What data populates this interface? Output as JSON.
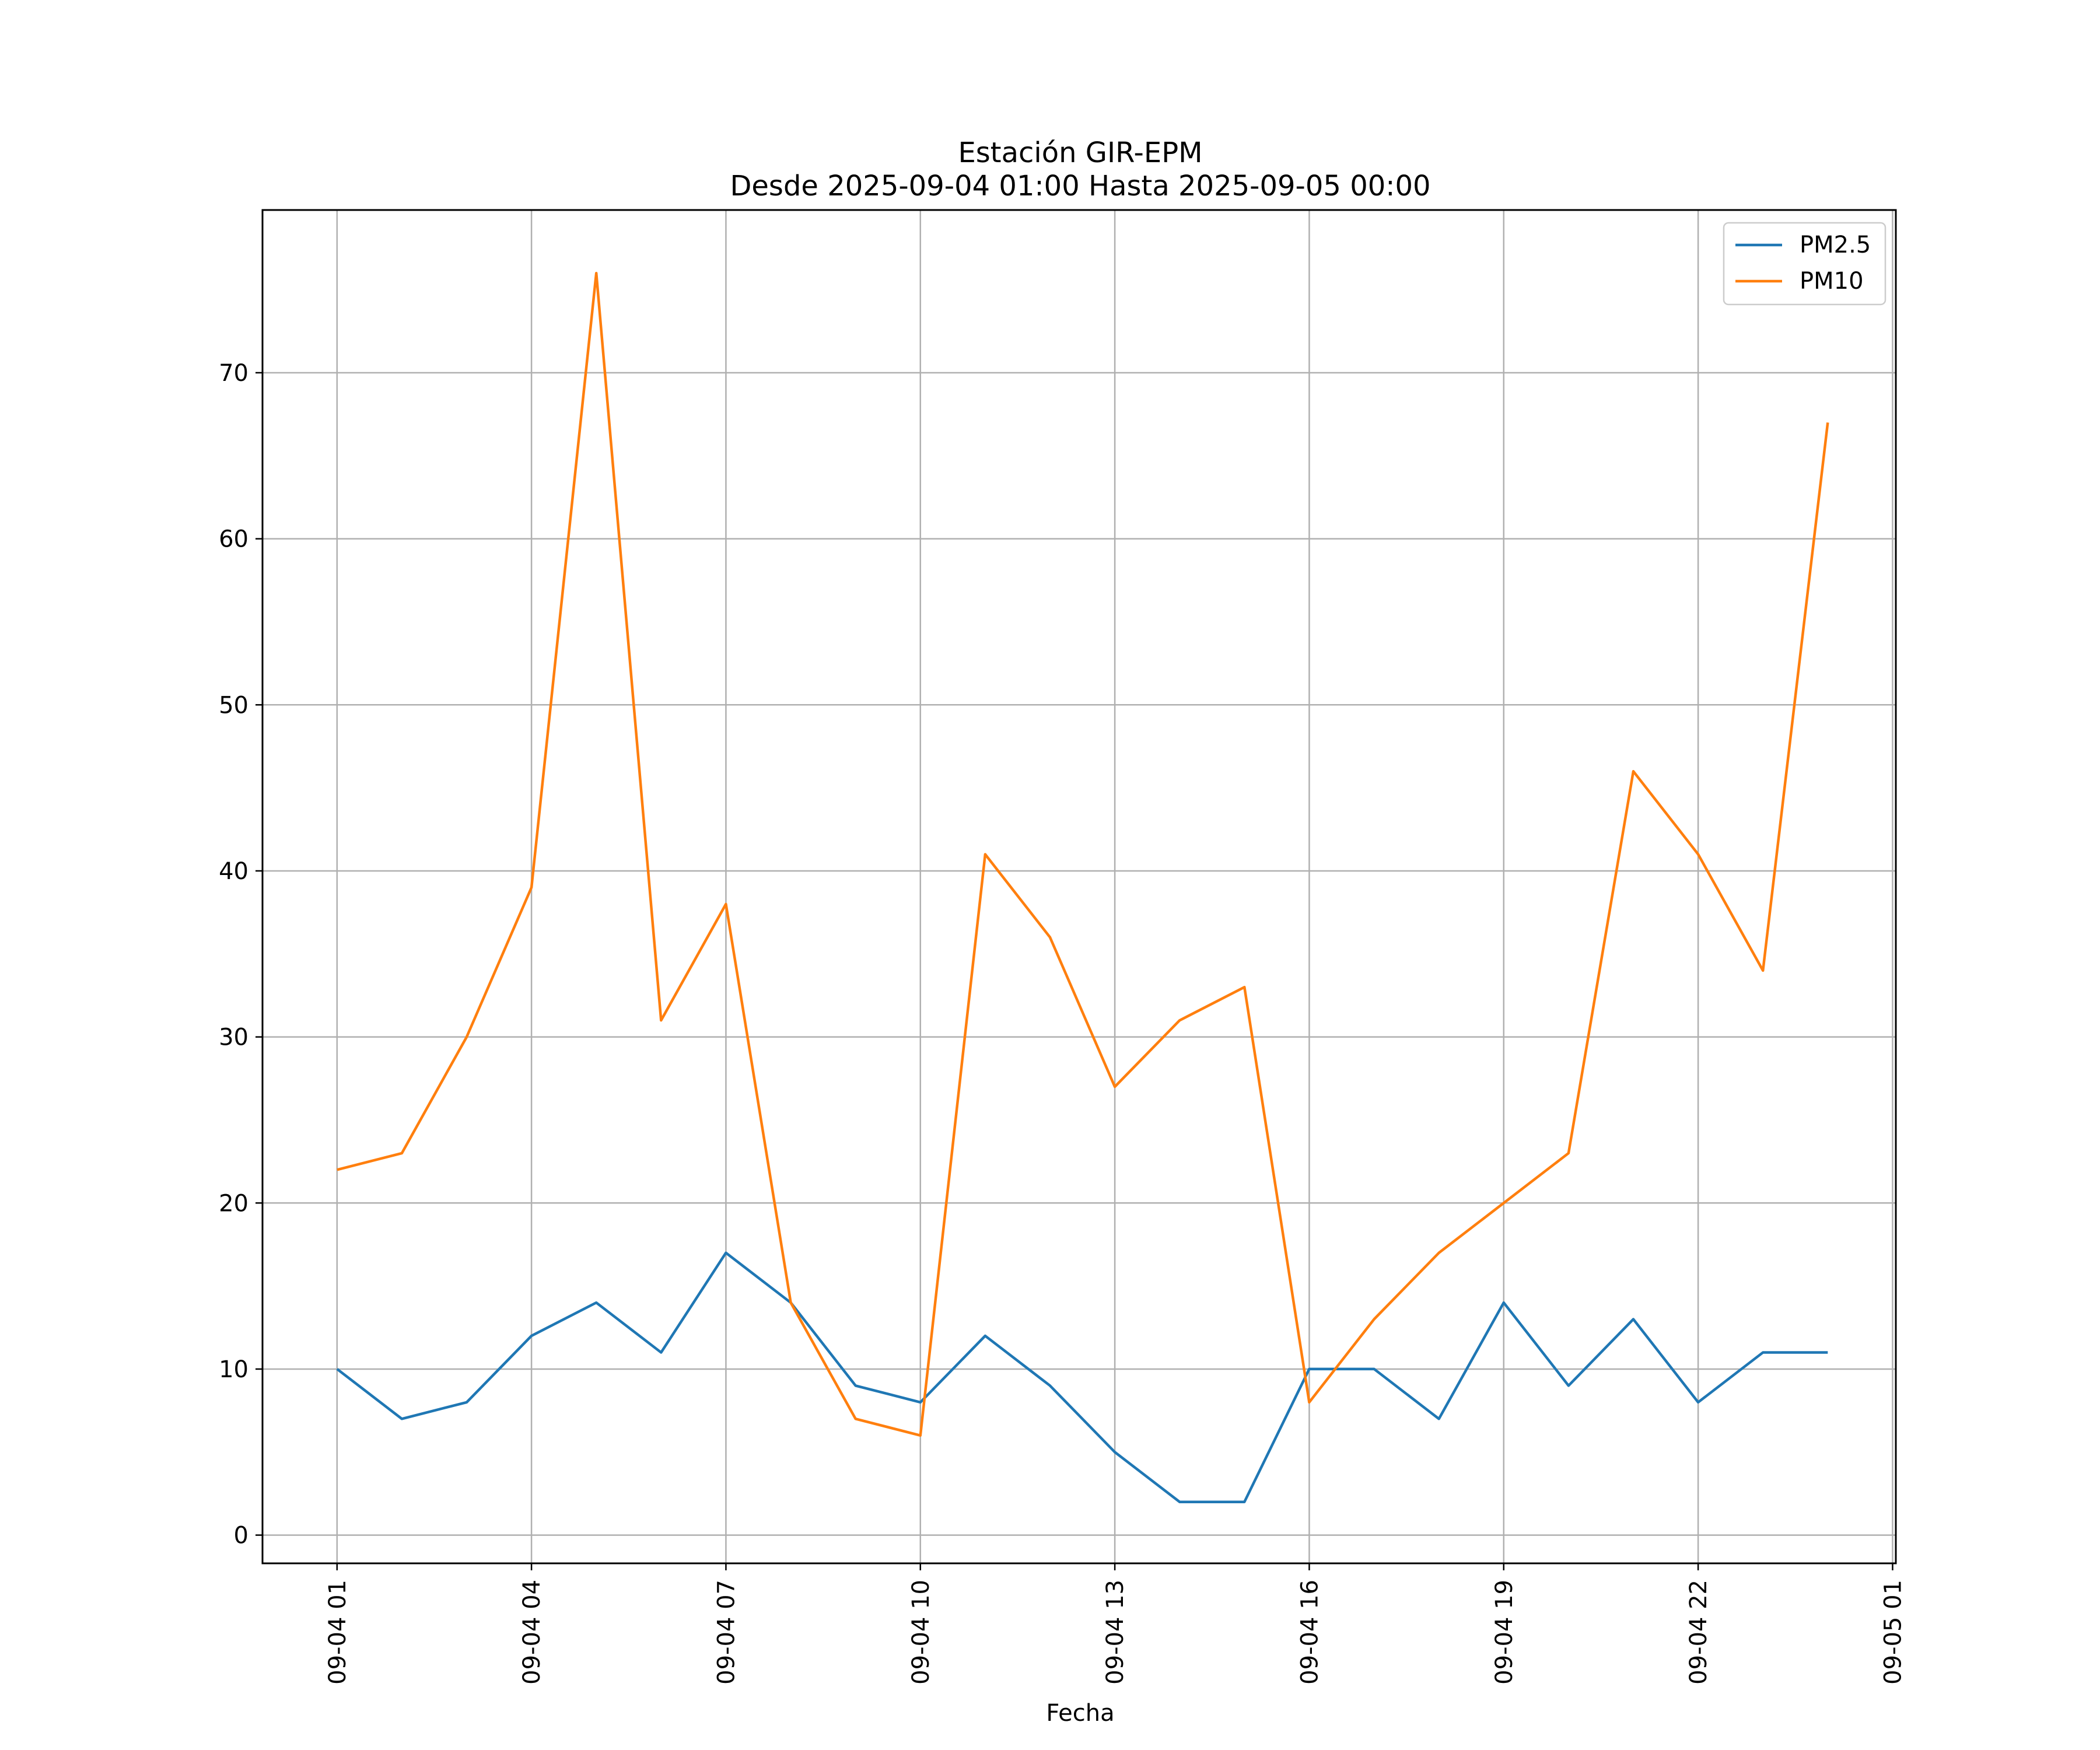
{
  "chart_data": {
    "type": "line",
    "title": [
      "Estación GIR-EPM",
      "Desde 2025-09-04 01:00 Hasta 2025-09-05 00:00"
    ],
    "xlabel": "Fecha",
    "ylabel": "",
    "x": [
      "09-04 01",
      "09-04 02",
      "09-04 03",
      "09-04 04",
      "09-04 05",
      "09-04 06",
      "09-04 07",
      "09-04 08",
      "09-04 09",
      "09-04 10",
      "09-04 11",
      "09-04 12",
      "09-04 13",
      "09-04 14",
      "09-04 15",
      "09-04 16",
      "09-04 17",
      "09-04 18",
      "09-04 19",
      "09-04 20",
      "09-04 21",
      "09-04 22",
      "09-04 23",
      "09-05 00"
    ],
    "xticks": [
      "09-04 01",
      "09-04 04",
      "09-04 07",
      "09-04 10",
      "09-04 13",
      "09-04 16",
      "09-04 19",
      "09-04 22",
      "09-05 01"
    ],
    "xtick_hours": [
      0,
      3,
      6,
      9,
      12,
      15,
      18,
      21,
      24
    ],
    "xlim_hours": [
      -1.15,
      24.05
    ],
    "ylim": [
      -1.7,
      79.8
    ],
    "yticks": [
      0,
      10,
      20,
      30,
      40,
      50,
      60,
      70
    ],
    "grid": true,
    "legend_position": "top-right",
    "series": [
      {
        "name": "PM2.5",
        "color": "#1f77b4",
        "values": [
          10,
          7,
          8,
          12,
          14,
          11,
          17,
          14,
          9,
          8,
          12,
          9,
          5,
          2,
          2,
          10,
          10,
          7,
          14,
          9,
          13,
          8,
          11,
          11
        ]
      },
      {
        "name": "PM10",
        "color": "#ff7f0e",
        "values": [
          22,
          23,
          30,
          39,
          76,
          31,
          38,
          14,
          7,
          6,
          41,
          36,
          27,
          31,
          33,
          8,
          13,
          17,
          20,
          23,
          46,
          41,
          34,
          67
        ]
      }
    ]
  }
}
